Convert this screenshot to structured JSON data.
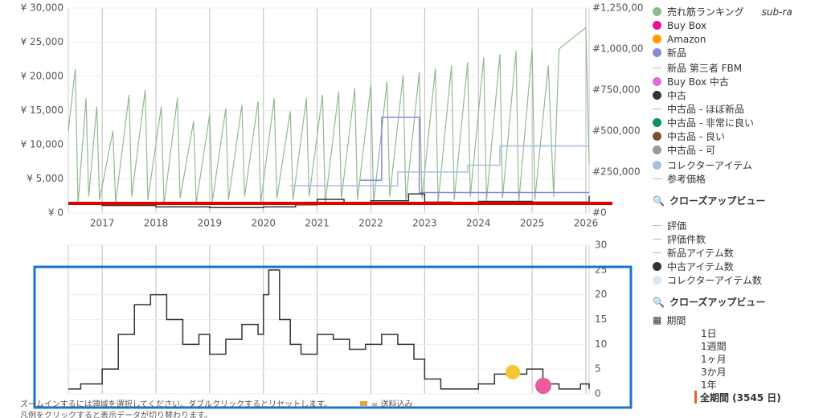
{
  "chart_data": [
    {
      "type": "line",
      "xlim": [
        2016.37,
        2026.06
      ],
      "xticks": [
        2017,
        2018,
        2019,
        2020,
        2021,
        2022,
        2023,
        2024,
        2025,
        2026
      ],
      "ylim": [
        0,
        30000
      ],
      "yticks": [
        {
          "value": 0,
          "label": "¥ 0"
        },
        {
          "value": 5000,
          "label": "¥ 5,000"
        },
        {
          "value": 10000,
          "label": "¥ 10,000"
        },
        {
          "value": 15000,
          "label": "¥ 15,000"
        },
        {
          "value": 20000,
          "label": "¥ 20,000"
        },
        {
          "value": 25000,
          "label": "¥ 25,000"
        },
        {
          "value": 30000,
          "label": "¥ 30,000"
        }
      ],
      "y2lim": [
        0,
        1250000
      ],
      "y2ticks": [
        {
          "value": 0,
          "label": "#0"
        },
        {
          "value": 250000,
          "label": "#250,000"
        },
        {
          "value": 500000,
          "label": "#500,000"
        },
        {
          "value": 750000,
          "label": "#750,000"
        },
        {
          "value": 1000000,
          "label": "#1,000,000"
        },
        {
          "value": 1250000,
          "label": "#1,250,000"
        }
      ],
      "grid": true,
      "series": [
        {
          "color": "#8fbc8f",
          "axis": "y2",
          "step": false,
          "x": [
            2016.37,
            2016.5,
            2016.55,
            2016.7,
            2016.75,
            2016.9,
            2016.95,
            2017.2,
            2017.25,
            2017.5,
            2017.55,
            2017.8,
            2017.85,
            2018.1,
            2018.15,
            2018.4,
            2018.45,
            2018.7,
            2018.75,
            2019.0,
            2019.05,
            2019.3,
            2019.35,
            2019.6,
            2019.65,
            2019.9,
            2019.95,
            2020.2,
            2020.25,
            2020.5,
            2020.55,
            2020.8,
            2020.85,
            2021.1,
            2021.15,
            2021.4,
            2021.45,
            2021.7,
            2021.75,
            2022.0,
            2022.05,
            2022.3,
            2022.35,
            2022.6,
            2022.65,
            2022.9,
            2022.95,
            2023.2,
            2023.25,
            2023.5,
            2023.55,
            2023.8,
            2023.85,
            2024.1,
            2024.15,
            2024.4,
            2024.45,
            2024.7,
            2024.75,
            2025.0,
            2025.05,
            2025.3,
            2025.4,
            2025.5,
            2025.8,
            2026.0,
            2026.06
          ],
          "values": [
            500000,
            880000,
            50000,
            700000,
            100000,
            650000,
            80000,
            500000,
            60000,
            720000,
            100000,
            750000,
            80000,
            650000,
            50000,
            700000,
            90000,
            560000,
            60000,
            600000,
            70000,
            640000,
            80000,
            660000,
            100000,
            680000,
            60000,
            700000,
            90000,
            620000,
            80000,
            700000,
            100000,
            720000,
            60000,
            740000,
            90000,
            760000,
            80000,
            780000,
            60000,
            800000,
            100000,
            840000,
            70000,
            860000,
            90000,
            880000,
            60000,
            900000,
            80000,
            920000,
            100000,
            950000,
            70000,
            970000,
            90000,
            990000,
            60000,
            1000000,
            80000,
            900000,
            100000,
            1000000,
            1080000,
            1130000,
            300000
          ]
        },
        {
          "color": "#a8c0e0",
          "step": true,
          "x": [
            2020.5,
            2021.6,
            2022.5,
            2023.8,
            2024.4,
            2026.06
          ],
          "values": [
            4000,
            4000,
            6000,
            7000,
            9800,
            9800
          ]
        },
        {
          "color": "#8888dd",
          "step": true,
          "x": [
            2021.8,
            2022.2,
            2022.9,
            2026.06
          ],
          "values": [
            4800,
            14000,
            3000,
            3000
          ]
        },
        {
          "color": "#333333",
          "step": true,
          "x": [
            2016.37,
            2017,
            2018,
            2019,
            2020,
            2020.6,
            2021,
            2021.5,
            2022,
            2022.7,
            2023,
            2023.5,
            2024,
            2025,
            2026.06
          ],
          "values": [
            1300,
            1100,
            900,
            800,
            900,
            1200,
            2000,
            1500,
            1800,
            2800,
            1600,
            1400,
            1700,
            1600,
            2500
          ]
        }
      ]
    },
    {
      "type": "line",
      "xlim": [
        2016.37,
        2026.06
      ],
      "xticks": [
        2017,
        2018,
        2019,
        2020,
        2021,
        2022,
        2023,
        2024,
        2025,
        2026
      ],
      "ylim": [
        0,
        30
      ],
      "yticks": [
        0,
        5,
        10,
        15,
        20,
        25,
        30
      ],
      "grid": true,
      "series": [
        {
          "color": "#333333",
          "step": true,
          "x": [
            2016.37,
            2016.6,
            2017.0,
            2017.3,
            2017.6,
            2017.9,
            2018.2,
            2018.5,
            2018.8,
            2019.0,
            2019.3,
            2019.6,
            2019.9,
            2020.0,
            2020.1,
            2020.3,
            2020.5,
            2020.7,
            2021.0,
            2021.3,
            2021.6,
            2021.9,
            2022.2,
            2022.5,
            2022.8,
            2023.0,
            2023.3,
            2023.6,
            2024.0,
            2024.3,
            2024.6,
            2024.9,
            2025.2,
            2025.5,
            2025.9,
            2026.06
          ],
          "values": [
            1,
            2,
            5,
            12,
            18,
            20,
            15,
            10,
            12,
            8,
            11,
            14,
            12,
            20,
            25,
            15,
            10,
            8,
            12,
            11,
            9,
            10,
            12,
            10,
            7,
            3,
            1,
            1,
            2,
            4,
            4,
            5,
            2,
            1,
            2,
            1
          ]
        }
      ]
    }
  ],
  "legend": [
    {
      "label": "売れ筋ランキング",
      "color": "#8fbc8f",
      "kind": "dot"
    },
    {
      "label": "Buy Box",
      "color": "#e0119d",
      "kind": "dot"
    },
    {
      "label": "Amazon",
      "color": "#ff9900",
      "kind": "dot"
    },
    {
      "label": "新品",
      "color": "#8888dd",
      "kind": "dot"
    },
    {
      "label": "新品 第三者 FBM",
      "color": "#bbbbbb",
      "kind": "line"
    },
    {
      "label": "Buy Box 中古",
      "color": "#da70d6",
      "kind": "dot"
    },
    {
      "label": "中古",
      "color": "#333333",
      "kind": "dot"
    },
    {
      "label": "中古品 - ほぼ新品",
      "color": "#bbbbbb",
      "kind": "line"
    },
    {
      "label": "中古品 - 非常に良い",
      "color": "#0a8f6a",
      "kind": "dot"
    },
    {
      "label": "中古品 - 良い",
      "color": "#7a5230",
      "kind": "dot"
    },
    {
      "label": "中古品 - 可",
      "color": "#999999",
      "kind": "dot"
    },
    {
      "label": "コレクターアイテム",
      "color": "#a8c0e0",
      "kind": "dot"
    },
    {
      "label": "参考価格",
      "color": "#bbbbbb",
      "kind": "line"
    }
  ],
  "legend2": [
    {
      "label": "評価",
      "color": "#bbbbbb",
      "kind": "line"
    },
    {
      "label": "評価件数",
      "color": "#bbbbbb",
      "kind": "line"
    },
    {
      "label": "新品アイテム数",
      "color": "#bbbbbb",
      "kind": "line"
    },
    {
      "label": "中古アイテム数",
      "color": "#333333",
      "kind": "dot"
    },
    {
      "label": "コレクターアイテム数",
      "color": "#dde8f5",
      "kind": "dot"
    }
  ],
  "subrank": "sub-ra",
  "closeup": "クローズアップビュー",
  "closeup2": "クローズアップビュー",
  "period_label": "期間",
  "periods": [
    "1日",
    "1週間",
    "1ヶ月",
    "3か月",
    "1年"
  ],
  "period_all": "全期間 (3545 日)",
  "hint": "ズームインするには領域を選択してください。ダブルクリックするとリセットします。",
  "shipping": "= 送料込み",
  "hint2": "凡例をクリックすると表示データが切り替わります。"
}
